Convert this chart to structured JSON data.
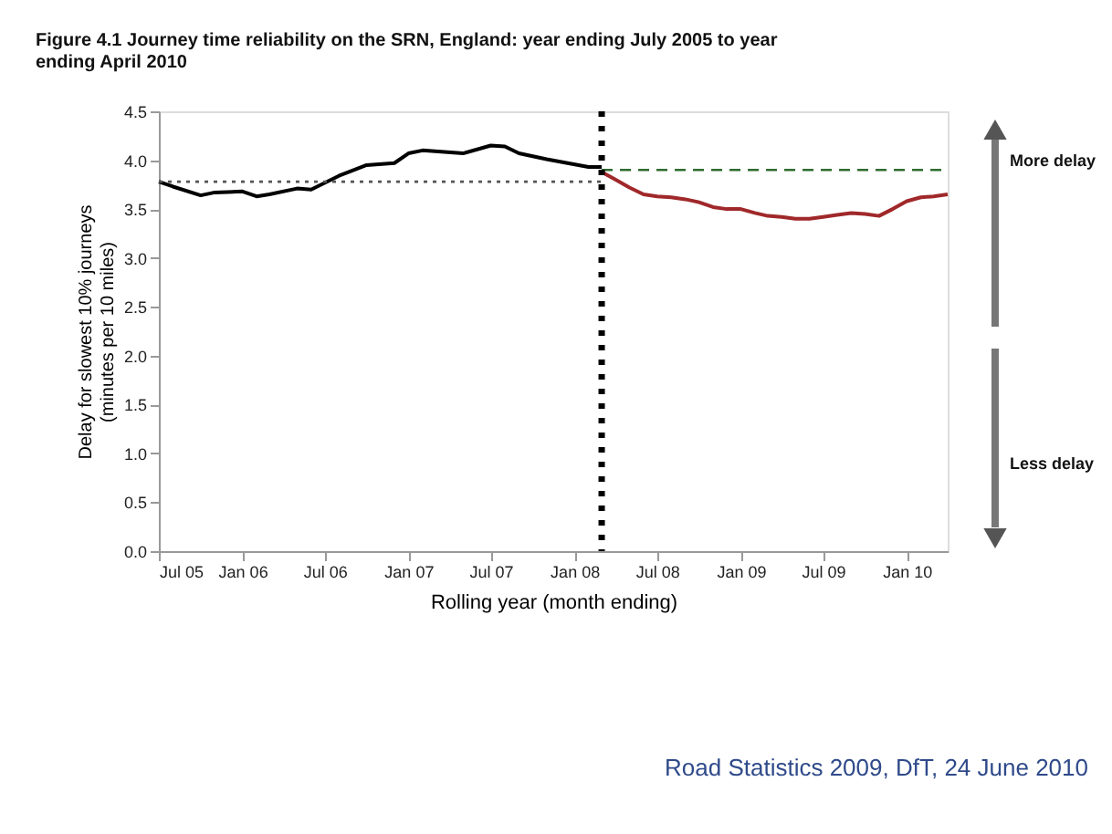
{
  "chart_data": {
    "type": "line",
    "title": "Figure 4.1 Journey time reliability on the SRN, England: year ending July 2005 to year ending April 2010",
    "xlabel": "Rolling year (month ending)",
    "ylabel": "Delay for slowest 10% journeys (minutes per 10 miles)",
    "series": [
      {
        "color": "#000000",
        "line_style": "solid",
        "x": [
          "2005-07",
          "2005-08",
          "2005-10",
          "2005-11",
          "2006-01",
          "2006-02",
          "2006-03",
          "2006-05",
          "2006-06",
          "2006-08",
          "2006-10",
          "2006-12",
          "2007-01",
          "2007-02",
          "2007-05",
          "2007-07",
          "2007-08",
          "2007-09",
          "2007-11",
          "2008-02",
          "2008-03"
        ],
        "values": [
          3.78,
          3.73,
          3.64,
          3.67,
          3.68,
          3.63,
          3.65,
          3.71,
          3.7,
          3.84,
          3.95,
          3.97,
          4.07,
          4.1,
          4.07,
          4.15,
          4.14,
          4.07,
          4.01,
          3.93,
          3.93
        ]
      },
      {
        "color": "#a0282a",
        "line_style": "solid",
        "x": [
          "2008-03",
          "2008-04",
          "2008-05",
          "2008-06",
          "2008-07",
          "2008-08",
          "2008-09",
          "2008-10",
          "2008-11",
          "2008-12",
          "2009-01",
          "2009-02",
          "2009-03",
          "2009-04",
          "2009-05",
          "2009-06",
          "2009-07",
          "2009-08",
          "2009-09",
          "2009-10",
          "2009-11",
          "2009-12",
          "2010-01",
          "2010-02",
          "2010-03",
          "2010-04"
        ],
        "values": [
          3.88,
          3.8,
          3.72,
          3.65,
          3.63,
          3.62,
          3.6,
          3.57,
          3.52,
          3.5,
          3.5,
          3.46,
          3.43,
          3.42,
          3.4,
          3.4,
          3.42,
          3.44,
          3.46,
          3.45,
          3.43,
          3.5,
          3.58,
          3.62,
          3.63,
          3.65
        ]
      },
      {
        "color": "#555555",
        "line_style": "dotted",
        "x": [
          "2005-07",
          "2008-03"
        ],
        "values": [
          3.78,
          3.78
        ]
      },
      {
        "color": "#2e6b2e",
        "line_style": "dashed",
        "x": [
          "2008-03",
          "2010-04"
        ],
        "values": [
          3.9,
          3.9
        ]
      }
    ],
    "ref_lines": [
      {
        "axis": "x",
        "value": "2008-03",
        "color": "#000000",
        "line_style": "dotted"
      }
    ],
    "xlim": [
      "2005-07",
      "2010-04"
    ],
    "xticks": [
      {
        "value": "2005-07",
        "label": "Jul 05"
      },
      {
        "value": "2006-01",
        "label": "Jan 06"
      },
      {
        "value": "2006-07",
        "label": "Jul 06"
      },
      {
        "value": "2007-01",
        "label": "Jan 07"
      },
      {
        "value": "2007-07",
        "label": "Jul 07"
      },
      {
        "value": "2008-01",
        "label": "Jan 08"
      },
      {
        "value": "2008-07",
        "label": "Jul 08"
      },
      {
        "value": "2009-01",
        "label": "Jan 09"
      },
      {
        "value": "2009-07",
        "label": "Jul 09"
      },
      {
        "value": "2010-01",
        "label": "Jan 10"
      }
    ],
    "ylim": [
      0,
      4.5
    ],
    "yticks": [
      {
        "value": 0,
        "label": "0.0"
      },
      {
        "value": 0.5,
        "label": "0.5"
      },
      {
        "value": 1,
        "label": "1.0"
      },
      {
        "value": 1.5,
        "label": "1.5"
      },
      {
        "value": 2,
        "label": "2.0"
      },
      {
        "value": 2.5,
        "label": "2.5"
      },
      {
        "value": 3,
        "label": "3.0"
      },
      {
        "value": 3.5,
        "label": "3.5"
      },
      {
        "value": 4,
        "label": "4.0"
      },
      {
        "value": 4.5,
        "label": "4.5"
      }
    ],
    "annotations": [
      "More delay",
      "Less delay",
      "Road Statistics 2009, DfT, 24 June 2010"
    ],
    "grid": false,
    "marker": "none"
  }
}
